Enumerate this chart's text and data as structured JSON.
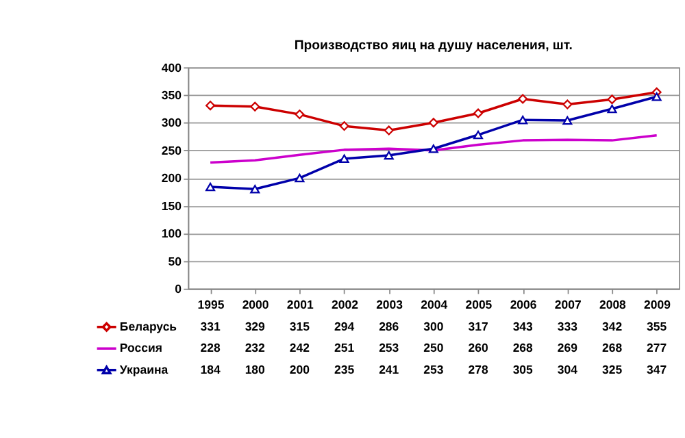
{
  "chart_data": {
    "type": "line",
    "title": "Производство яиц на душу населения, шт.",
    "categories": [
      "1995",
      "2000",
      "2001",
      "2002",
      "2003",
      "2004",
      "2005",
      "2006",
      "2007",
      "2008",
      "2009"
    ],
    "series": [
      {
        "name": "Беларусь",
        "color": "#cc0000",
        "marker": "diamond",
        "values": [
          331,
          329,
          315,
          294,
          286,
          300,
          317,
          343,
          333,
          342,
          355
        ]
      },
      {
        "name": "Россия",
        "color": "#cc00cc",
        "marker": "none",
        "values": [
          228,
          232,
          242,
          251,
          253,
          250,
          260,
          268,
          269,
          268,
          277
        ]
      },
      {
        "name": "Украина",
        "color": "#0000aa",
        "marker": "triangle",
        "values": [
          184,
          180,
          200,
          235,
          241,
          253,
          278,
          305,
          304,
          325,
          347
        ]
      }
    ],
    "ylim": [
      0,
      400
    ],
    "yticks": [
      0,
      50,
      100,
      150,
      200,
      250,
      300,
      350,
      400
    ],
    "grid": "y",
    "data_labels": true,
    "line_style": "solid",
    "legend": "bottom left"
  }
}
